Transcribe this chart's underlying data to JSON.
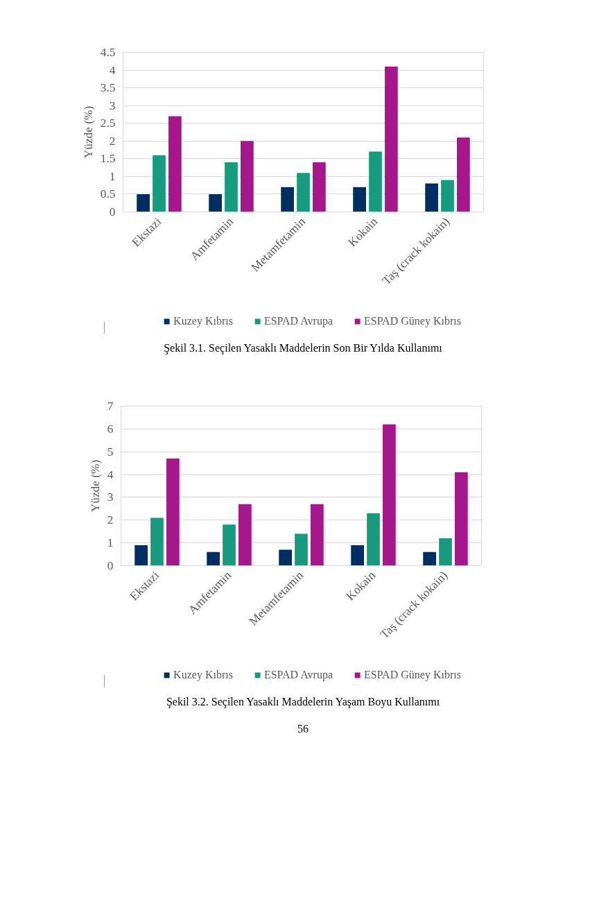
{
  "chart_data": [
    {
      "type": "bar",
      "categories": [
        "Ekstazi",
        "Amfetamin",
        "Metamfetamin",
        "Kokain",
        "Taş (crack kokain)"
      ],
      "ylabel": "Yüzde (%)",
      "ylim": [
        0,
        4.5
      ],
      "yticks": [
        0,
        0.5,
        1,
        1.5,
        2,
        2.5,
        3,
        3.5,
        4,
        4.5
      ],
      "grid": "y",
      "legend": "bottom",
      "series": [
        {
          "name": "Kuzey Kıbrıs",
          "color": "#002d62",
          "values": [
            0.5,
            0.5,
            0.7,
            0.7,
            0.8
          ]
        },
        {
          "name": "ESPAD Avrupa",
          "color": "#169b7f",
          "values": [
            1.6,
            1.4,
            1.1,
            1.7,
            0.9
          ]
        },
        {
          "name": "ESPAD Güney Kıbrıs",
          "color": "#a6168c",
          "values": [
            2.7,
            2.0,
            1.4,
            4.1,
            2.1
          ]
        }
      ],
      "annotations": [
        "Şekil 3.1. Seçilen Yasaklı Maddelerin Son Bir Yılda Kullanımı"
      ]
    },
    {
      "type": "bar",
      "categories": [
        "Ekstazi",
        "Amfetamin",
        "Metamfetamin",
        "Kokain",
        "Taş (crack kokain)"
      ],
      "ylabel": "Yüzde (%)",
      "ylim": [
        0,
        7
      ],
      "yticks": [
        0,
        1,
        2,
        3,
        4,
        5,
        6,
        7
      ],
      "grid": "y",
      "legend": "bottom",
      "series": [
        {
          "name": "Kuzey Kıbrıs",
          "color": "#002d62",
          "values": [
            0.9,
            0.6,
            0.7,
            0.9,
            0.6
          ]
        },
        {
          "name": "ESPAD Avrupa",
          "color": "#169b7f",
          "values": [
            2.1,
            1.8,
            1.4,
            2.3,
            1.2
          ]
        },
        {
          "name": "ESPAD Güney Kıbrıs",
          "color": "#a6168c",
          "values": [
            4.7,
            2.7,
            2.7,
            6.2,
            4.1
          ]
        }
      ],
      "annotations": [
        "Şekil 3.2. Seçilen Yasaklı Maddelerin Yaşam Boyu Kullanımı",
        "56"
      ]
    }
  ]
}
